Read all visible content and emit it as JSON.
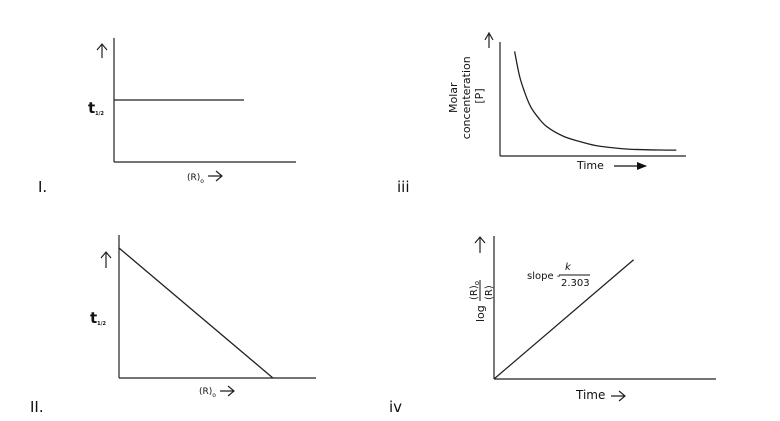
{
  "chart_data": [
    {
      "id": "I",
      "type": "line",
      "panel_label": "I.",
      "ylabel": "t",
      "ylabel_sub": "1/2",
      "xlabel": "(R)",
      "xlabel_sub": "o",
      "x": [
        0,
        1
      ],
      "y": [
        1,
        1
      ],
      "xlim": [
        0,
        1.4
      ],
      "ylim": [
        0,
        2
      ],
      "grid": false
    },
    {
      "id": "II",
      "type": "line",
      "panel_label": "II.",
      "ylabel": "t",
      "ylabel_sub": "1/2",
      "xlabel": "(R)",
      "xlabel_sub": "o",
      "x": [
        0,
        1
      ],
      "y": [
        1,
        0
      ],
      "xlim": [
        0,
        1.28
      ],
      "ylim": [
        0,
        1.1
      ],
      "grid": false
    },
    {
      "id": "iii",
      "type": "line",
      "panel_label": "iii",
      "ylabel_lines": [
        "Molar",
        "concenteration",
        "[P]"
      ],
      "xlabel": "Time",
      "x": [
        0,
        0.03,
        0.06,
        0.1,
        0.15,
        0.2,
        0.3,
        0.4,
        0.5,
        0.6,
        0.7,
        0.8,
        0.9,
        1
      ],
      "y": [
        1,
        0.77,
        0.62,
        0.47,
        0.36,
        0.28,
        0.19,
        0.14,
        0.1,
        0.08,
        0.066,
        0.06,
        0.057,
        0.056
      ],
      "xlim": [
        -0.09,
        1.06
      ],
      "ylim": [
        0,
        1.09
      ],
      "grid": false
    },
    {
      "id": "iv",
      "type": "line",
      "panel_label": "iv",
      "ylabel": "log",
      "ylabel_frac_num": "(R)",
      "ylabel_frac_num_sub": "o",
      "ylabel_frac_den": "(R)",
      "xlabel": "Time",
      "annotation": "slope -",
      "annotation_frac_num": "k",
      "annotation_frac_den": "2.303",
      "x": [
        0,
        1
      ],
      "y": [
        0,
        1
      ],
      "xlim": [
        0,
        1.59
      ],
      "ylim": [
        0,
        1.2
      ],
      "grid": false
    }
  ]
}
